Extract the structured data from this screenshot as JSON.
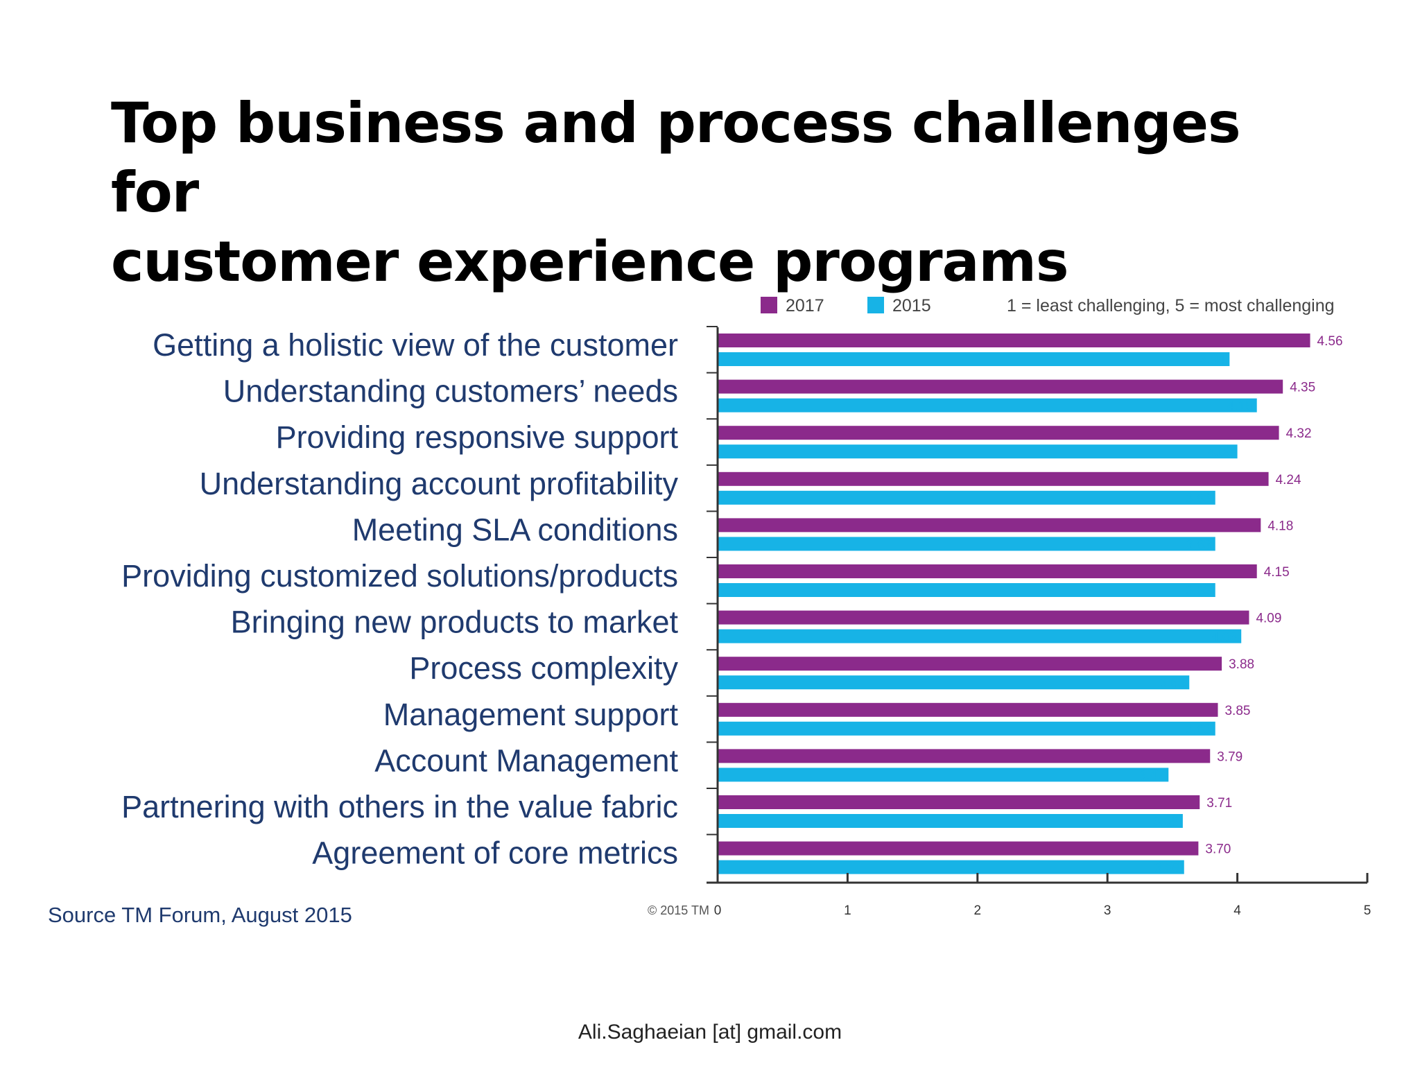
{
  "slide": {
    "title_line1": "Top business and process challenges for",
    "title_line2": "customer experience programs",
    "source": "Source TM Forum, August 2015",
    "copyright": "© 2015 TM",
    "footer": "Ali.Saghaeian [at] gmail.com"
  },
  "chart_data": {
    "type": "bar",
    "orientation": "horizontal",
    "categories": [
      "Getting a holistic view of the customer",
      "Understanding customers’ needs",
      "Providing responsive support",
      "Understanding account profitability",
      "Meeting SLA conditions",
      "Providing customized solutions/products",
      "Bringing new products to market",
      "Process complexity",
      "Management support",
      "Account Management",
      "Partnering with others in the value fabric",
      "Agreement of core metrics"
    ],
    "series": [
      {
        "name": "2017",
        "color": "#8b2a8b",
        "values": [
          4.56,
          4.35,
          4.32,
          4.24,
          4.18,
          4.15,
          4.09,
          3.88,
          3.85,
          3.79,
          3.71,
          3.7
        ],
        "labels": [
          "4.56",
          "4.35",
          "4.32",
          "4.24",
          "4.18",
          "4.15",
          "4.09",
          "3.88",
          "3.85",
          "3.79",
          "3.71",
          "3.70"
        ]
      },
      {
        "name": "2015",
        "color": "#17b3e6",
        "values": [
          3.94,
          4.15,
          4.0,
          3.83,
          3.83,
          3.83,
          4.03,
          3.63,
          3.83,
          3.47,
          3.58,
          3.59
        ],
        "labels": [
          "3.94",
          "4.15",
          "4.00",
          "3.83",
          "3.83",
          "3.83",
          "4.03",
          "3.63",
          "3.83",
          "3.47",
          "3.58",
          "3.59"
        ]
      }
    ],
    "legend_note": "1 = least challenging, 5 = most challenging",
    "xlim": [
      0,
      5
    ],
    "xticks": [
      "0",
      "1",
      "2",
      "3",
      "4",
      "5"
    ],
    "legend_position": "top",
    "grid": false
  }
}
